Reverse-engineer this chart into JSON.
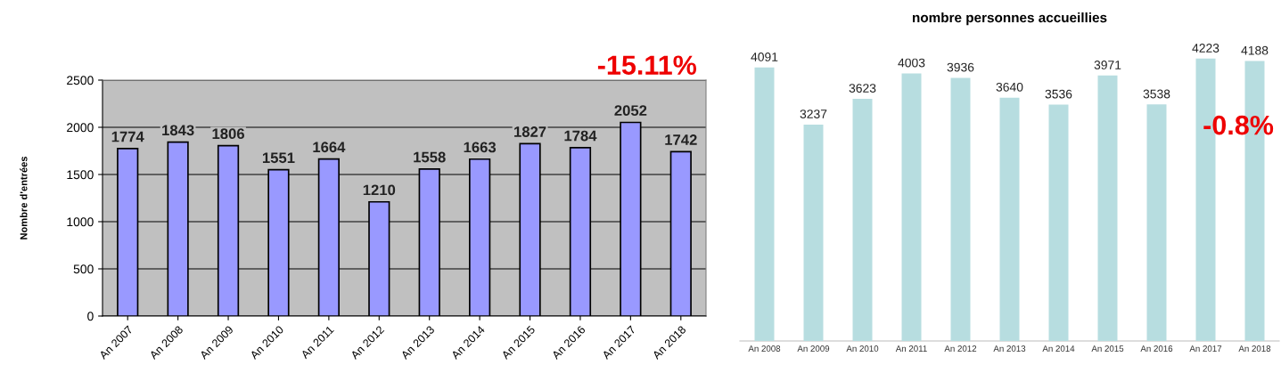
{
  "chart_data": [
    {
      "type": "bar",
      "ylabel": "Nombre d'entrées",
      "categories": [
        "An 2007",
        "An 2008",
        "An 2009",
        "An 2010",
        "An 2011",
        "An 2012",
        "An 2013",
        "An 2014",
        "An 2015",
        "An 2016",
        "An 2017",
        "An 2018"
      ],
      "values": [
        1774,
        1843,
        1806,
        1551,
        1664,
        1210,
        1558,
        1663,
        1827,
        1784,
        2052,
        1742
      ],
      "color": "#9999ff",
      "ylim": [
        0,
        2500
      ],
      "yticks": [
        0,
        500,
        1000,
        1500,
        2000,
        2500
      ],
      "grid": "y",
      "data_labels": true,
      "annotations": [
        "-15.11%"
      ]
    },
    {
      "type": "bar",
      "title": "nombre personnes accueillies",
      "categories": [
        "An 2008",
        "An 2009",
        "An 2010",
        "An 2011",
        "An 2012",
        "An 2013",
        "An 2014",
        "An 2015",
        "An 2016",
        "An 2017",
        "An 2018"
      ],
      "values": [
        4091,
        3237,
        3623,
        4003,
        3936,
        3640,
        3536,
        3971,
        3538,
        4223,
        4188
      ],
      "color": "#b7dde0",
      "data_labels": true,
      "tick_labels": "x",
      "annotations": [
        "-0.8%"
      ]
    }
  ]
}
